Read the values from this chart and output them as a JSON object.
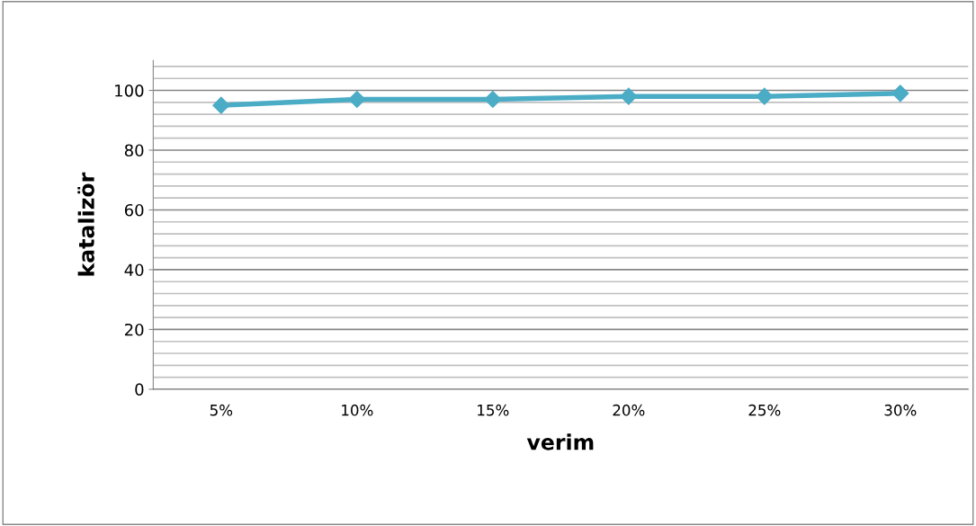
{
  "chart_data": {
    "type": "line",
    "xlabel": "verim",
    "ylabel": "katalizör",
    "categories": [
      "5%",
      "10%",
      "15%",
      "20%",
      "25%",
      "30%"
    ],
    "series": [
      {
        "color": "#4bacc6",
        "values": [
          95,
          97,
          97,
          98,
          98,
          99
        ]
      }
    ],
    "ylim": [
      0,
      110
    ],
    "yticks": [
      0,
      20,
      40,
      60,
      80,
      100
    ],
    "grid": "y",
    "marker": "diamond",
    "line_style": "solid",
    "legend": false
  }
}
